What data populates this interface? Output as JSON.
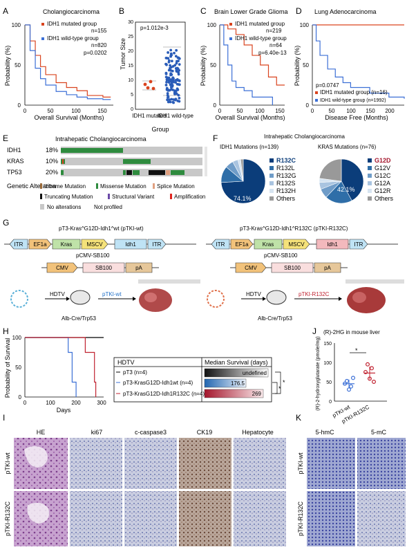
{
  "panels": {
    "A": {
      "letter": "A",
      "title": "Cholangiocarcinoma",
      "legend": [
        "IDH1 mutated group",
        "IDH1 wild-type group"
      ],
      "stats": [
        "n=155",
        "n=820",
        "p=0.0202"
      ],
      "ylabel": "Probability (%)",
      "xlabel": "Overall Survival (Months)",
      "yticks": [
        "0",
        "50",
        "100"
      ],
      "xticks": [
        "0",
        "50",
        "100",
        "150"
      ]
    },
    "B": {
      "letter": "B",
      "pvalue": "p=1.012e-3",
      "ylabel": "Tumor Size",
      "yticks": [
        "0",
        "5",
        "10",
        "15",
        "20",
        "25",
        "30"
      ],
      "groups": [
        "IDH1 mutated",
        "IDH1 wild-type"
      ],
      "xlabel": "Group"
    },
    "C": {
      "letter": "C",
      "title": "Brain Lower Grade Glioma",
      "legend": [
        "IDH1 mutated group",
        "IDH1 wild-type group"
      ],
      "stats": [
        "n=219",
        "n=64",
        "p=6.40e-13"
      ],
      "ylabel": "Probability (%)",
      "xlabel": "Overall Survival (Months)",
      "yticks": [
        "0",
        "50",
        "100"
      ],
      "xticks": [
        "0",
        "50",
        "100",
        "150"
      ]
    },
    "D": {
      "letter": "D",
      "title": "Lung Adenocarcinoma",
      "pvalue": "p=0.0747",
      "legend": [
        "IDH1 mutated group (n=16)",
        "IDH1 wild-type group (n=1992)"
      ],
      "ylabel": "Probability (%)",
      "xlabel": "Disease Free (Months)",
      "yticks": [
        "0",
        "50",
        "100"
      ],
      "xticks": [
        "0",
        "50",
        "100",
        "150",
        "200"
      ]
    },
    "E": {
      "letter": "E",
      "title": "Intrahepatic Cholangiocarcinoma",
      "genes": [
        {
          "name": "IDH1",
          "pct": "18%"
        },
        {
          "name": "KRAS",
          "pct": "10%"
        },
        {
          "name": "TP53",
          "pct": "20%"
        }
      ],
      "legend_title": "Genetic Alteration",
      "legend": [
        "Inframe Mutation",
        "Missense Mutation",
        "Splice Mutation",
        "Truncating Mutation",
        "Structural Variant",
        "Amplification",
        "No alterations",
        "Not profiled"
      ]
    },
    "F": {
      "letter": "F",
      "title": "Intrahepatic Cholangiocarcinoma",
      "pie1_title": "IDH1 Mutations (n=139)",
      "pie1_labels": [
        "R132C",
        "R132L",
        "R132G",
        "R132S",
        "R132H",
        "Others"
      ],
      "pie1_pct": "74.1%",
      "pie2_title": "KRAS Mutations (n=76)",
      "pie2_labels": [
        "G12D",
        "G12V",
        "G12C",
        "G12A",
        "G12R",
        "Others"
      ],
      "pie2_pct": "42.1%"
    },
    "G": {
      "letter": "G",
      "left_title": "pT3-Kras^G12D-Idh1^wt (pTKI-wt)",
      "right_title": "pT3-Kras^G12D-Idh1^R132C (pTKI-R132C)",
      "left_boxes": [
        "ITR",
        "EF1a",
        "Kras",
        "MSCV",
        "Idh1",
        "ITR"
      ],
      "right_boxes": [
        "ITR",
        "EF1a",
        "Kras",
        "MSCV",
        "Idh1",
        "ITR"
      ],
      "cmv_title": "pCMV-SB100",
      "cmv_boxes": [
        "CMV",
        "SB100",
        "pA"
      ],
      "hdtv": "HDTV",
      "mouse": "Alb-Cre/Trp53",
      "left_label": "pTKI-wt",
      "right_label": "pTKI-R132C"
    },
    "H": {
      "letter": "H",
      "ylabel": "Probability of Survival",
      "xlabel": "Days",
      "yticks": [
        "0",
        "50",
        "100"
      ],
      "xticks": [
        "0",
        "100",
        "200",
        "300"
      ],
      "table_head": [
        "HDTV",
        "Median Survival (days)"
      ],
      "rows": [
        {
          "label": "pT3 (n=4)",
          "value": "undefined"
        },
        {
          "label": "pT3-KrasG12D-Idh1wt (n=4)",
          "value": "176.5"
        },
        {
          "label": "pT3-KrasG12D-Idh1R132C (n=4)",
          "value": "269"
        }
      ],
      "stars": [
        "*",
        "*"
      ]
    },
    "I": {
      "letter": "I",
      "cols": [
        "HE",
        "ki67",
        "c-caspase3",
        "CK19",
        "Hepatocyte"
      ],
      "rows": [
        "pTKI-wt",
        "pTKI-R132C"
      ]
    },
    "J": {
      "letter": "J",
      "title": "(R)-2HG in mouse liver",
      "ylabel": "(R)-2-hydroxyglutarate (pmole/mg)",
      "yticks": [
        "0",
        "50",
        "100",
        "150"
      ],
      "groups": [
        "pTKI-wt",
        "pTKI-R132C"
      ],
      "star": "*"
    },
    "K": {
      "letter": "K",
      "cols": [
        "5-hmC",
        "5-mC"
      ],
      "rows": [
        "pTKI-wt",
        "pTKI-R132C"
      ]
    }
  },
  "colors": {
    "red": "#d9431e",
    "blue": "#3b6fd6",
    "navy": "#0b3d7a",
    "green": "#2e8b3e"
  },
  "chart_data": [
    {
      "type": "line",
      "panel": "A",
      "series": [
        {
          "name": "IDH1 mutated group",
          "x": [
            0,
            10,
            20,
            30,
            40,
            60,
            80,
            100,
            120,
            150,
            165
          ],
          "y": [
            100,
            80,
            62,
            48,
            38,
            28,
            22,
            18,
            12,
            10,
            10
          ]
        },
        {
          "name": "IDH1 wild-type group",
          "x": [
            0,
            10,
            20,
            30,
            40,
            60,
            80,
            100,
            120,
            150,
            165
          ],
          "y": [
            100,
            68,
            46,
            33,
            25,
            17,
            13,
            10,
            8,
            7,
            7
          ]
        }
      ],
      "xlim": [
        0,
        170
      ],
      "ylim": [
        0,
        100
      ]
    },
    {
      "type": "scatter",
      "panel": "B",
      "categories": [
        "IDH1 mutated",
        "IDH1 wild-type"
      ],
      "ylim": [
        0,
        30
      ]
    },
    {
      "type": "line",
      "panel": "C",
      "series": [
        {
          "name": "IDH1 mutated group",
          "x": [
            0,
            20,
            40,
            60,
            80,
            100,
            120,
            140,
            160
          ],
          "y": [
            100,
            95,
            88,
            75,
            62,
            50,
            35,
            25,
            25
          ]
        },
        {
          "name": "IDH1 wild-type group",
          "x": [
            0,
            10,
            20,
            30,
            40,
            60,
            80,
            100,
            130
          ],
          "y": [
            100,
            75,
            50,
            30,
            22,
            18,
            10,
            10,
            0
          ]
        }
      ],
      "xlim": [
        0,
        160
      ],
      "ylim": [
        0,
        100
      ]
    },
    {
      "type": "line",
      "panel": "D",
      "series": [
        {
          "name": "IDH1 mutated group (n=16)",
          "x": [
            0,
            240
          ],
          "y": [
            100,
            100
          ]
        },
        {
          "name": "IDH1 wild-type group (n=1992)",
          "x": [
            0,
            10,
            20,
            40,
            60,
            80,
            100,
            150,
            200,
            240
          ],
          "y": [
            100,
            80,
            62,
            45,
            35,
            28,
            22,
            15,
            10,
            8
          ]
        }
      ],
      "xlim": [
        0,
        240
      ],
      "ylim": [
        0,
        100
      ]
    },
    {
      "type": "pie",
      "panel": "F-IDH1",
      "labels": [
        "R132C",
        "R132L",
        "R132G",
        "R132S",
        "R132H",
        "Others"
      ],
      "values": [
        74.1,
        12,
        6,
        4,
        2,
        1.9
      ]
    },
    {
      "type": "pie",
      "panel": "F-KRAS",
      "labels": [
        "G12D",
        "G12V",
        "G12C",
        "G12A",
        "G12R",
        "Others"
      ],
      "values": [
        42.1,
        20,
        7,
        5,
        3,
        22.9
      ]
    },
    {
      "type": "line",
      "panel": "H",
      "series": [
        {
          "name": "pT3 (n=4)",
          "x": [
            0,
            300
          ],
          "y": [
            100,
            100
          ]
        },
        {
          "name": "pT3-KrasG12D-Idh1wt (n=4)",
          "x": [
            0,
            165,
            165,
            180,
            180,
            195,
            195
          ],
          "y": [
            100,
            100,
            75,
            75,
            25,
            25,
            0
          ]
        },
        {
          "name": "pT3-KrasG12D-Idh1R132C (n=4)",
          "x": [
            0,
            230,
            230,
            265,
            265,
            270,
            270
          ],
          "y": [
            100,
            100,
            75,
            75,
            25,
            25,
            0
          ]
        }
      ],
      "xlim": [
        0,
        300
      ],
      "ylim": [
        0,
        100
      ]
    },
    {
      "type": "scatter",
      "panel": "J",
      "categories": [
        "pTKI-wt",
        "pTKI-R132C"
      ],
      "series": [
        {
          "name": "pTKI-wt",
          "values": [
            45,
            52,
            30,
            38,
            60
          ]
        },
        {
          "name": "pTKI-R132C",
          "values": [
            75,
            95,
            58,
            85,
            50
          ]
        }
      ],
      "ylim": [
        0,
        150
      ]
    }
  ]
}
